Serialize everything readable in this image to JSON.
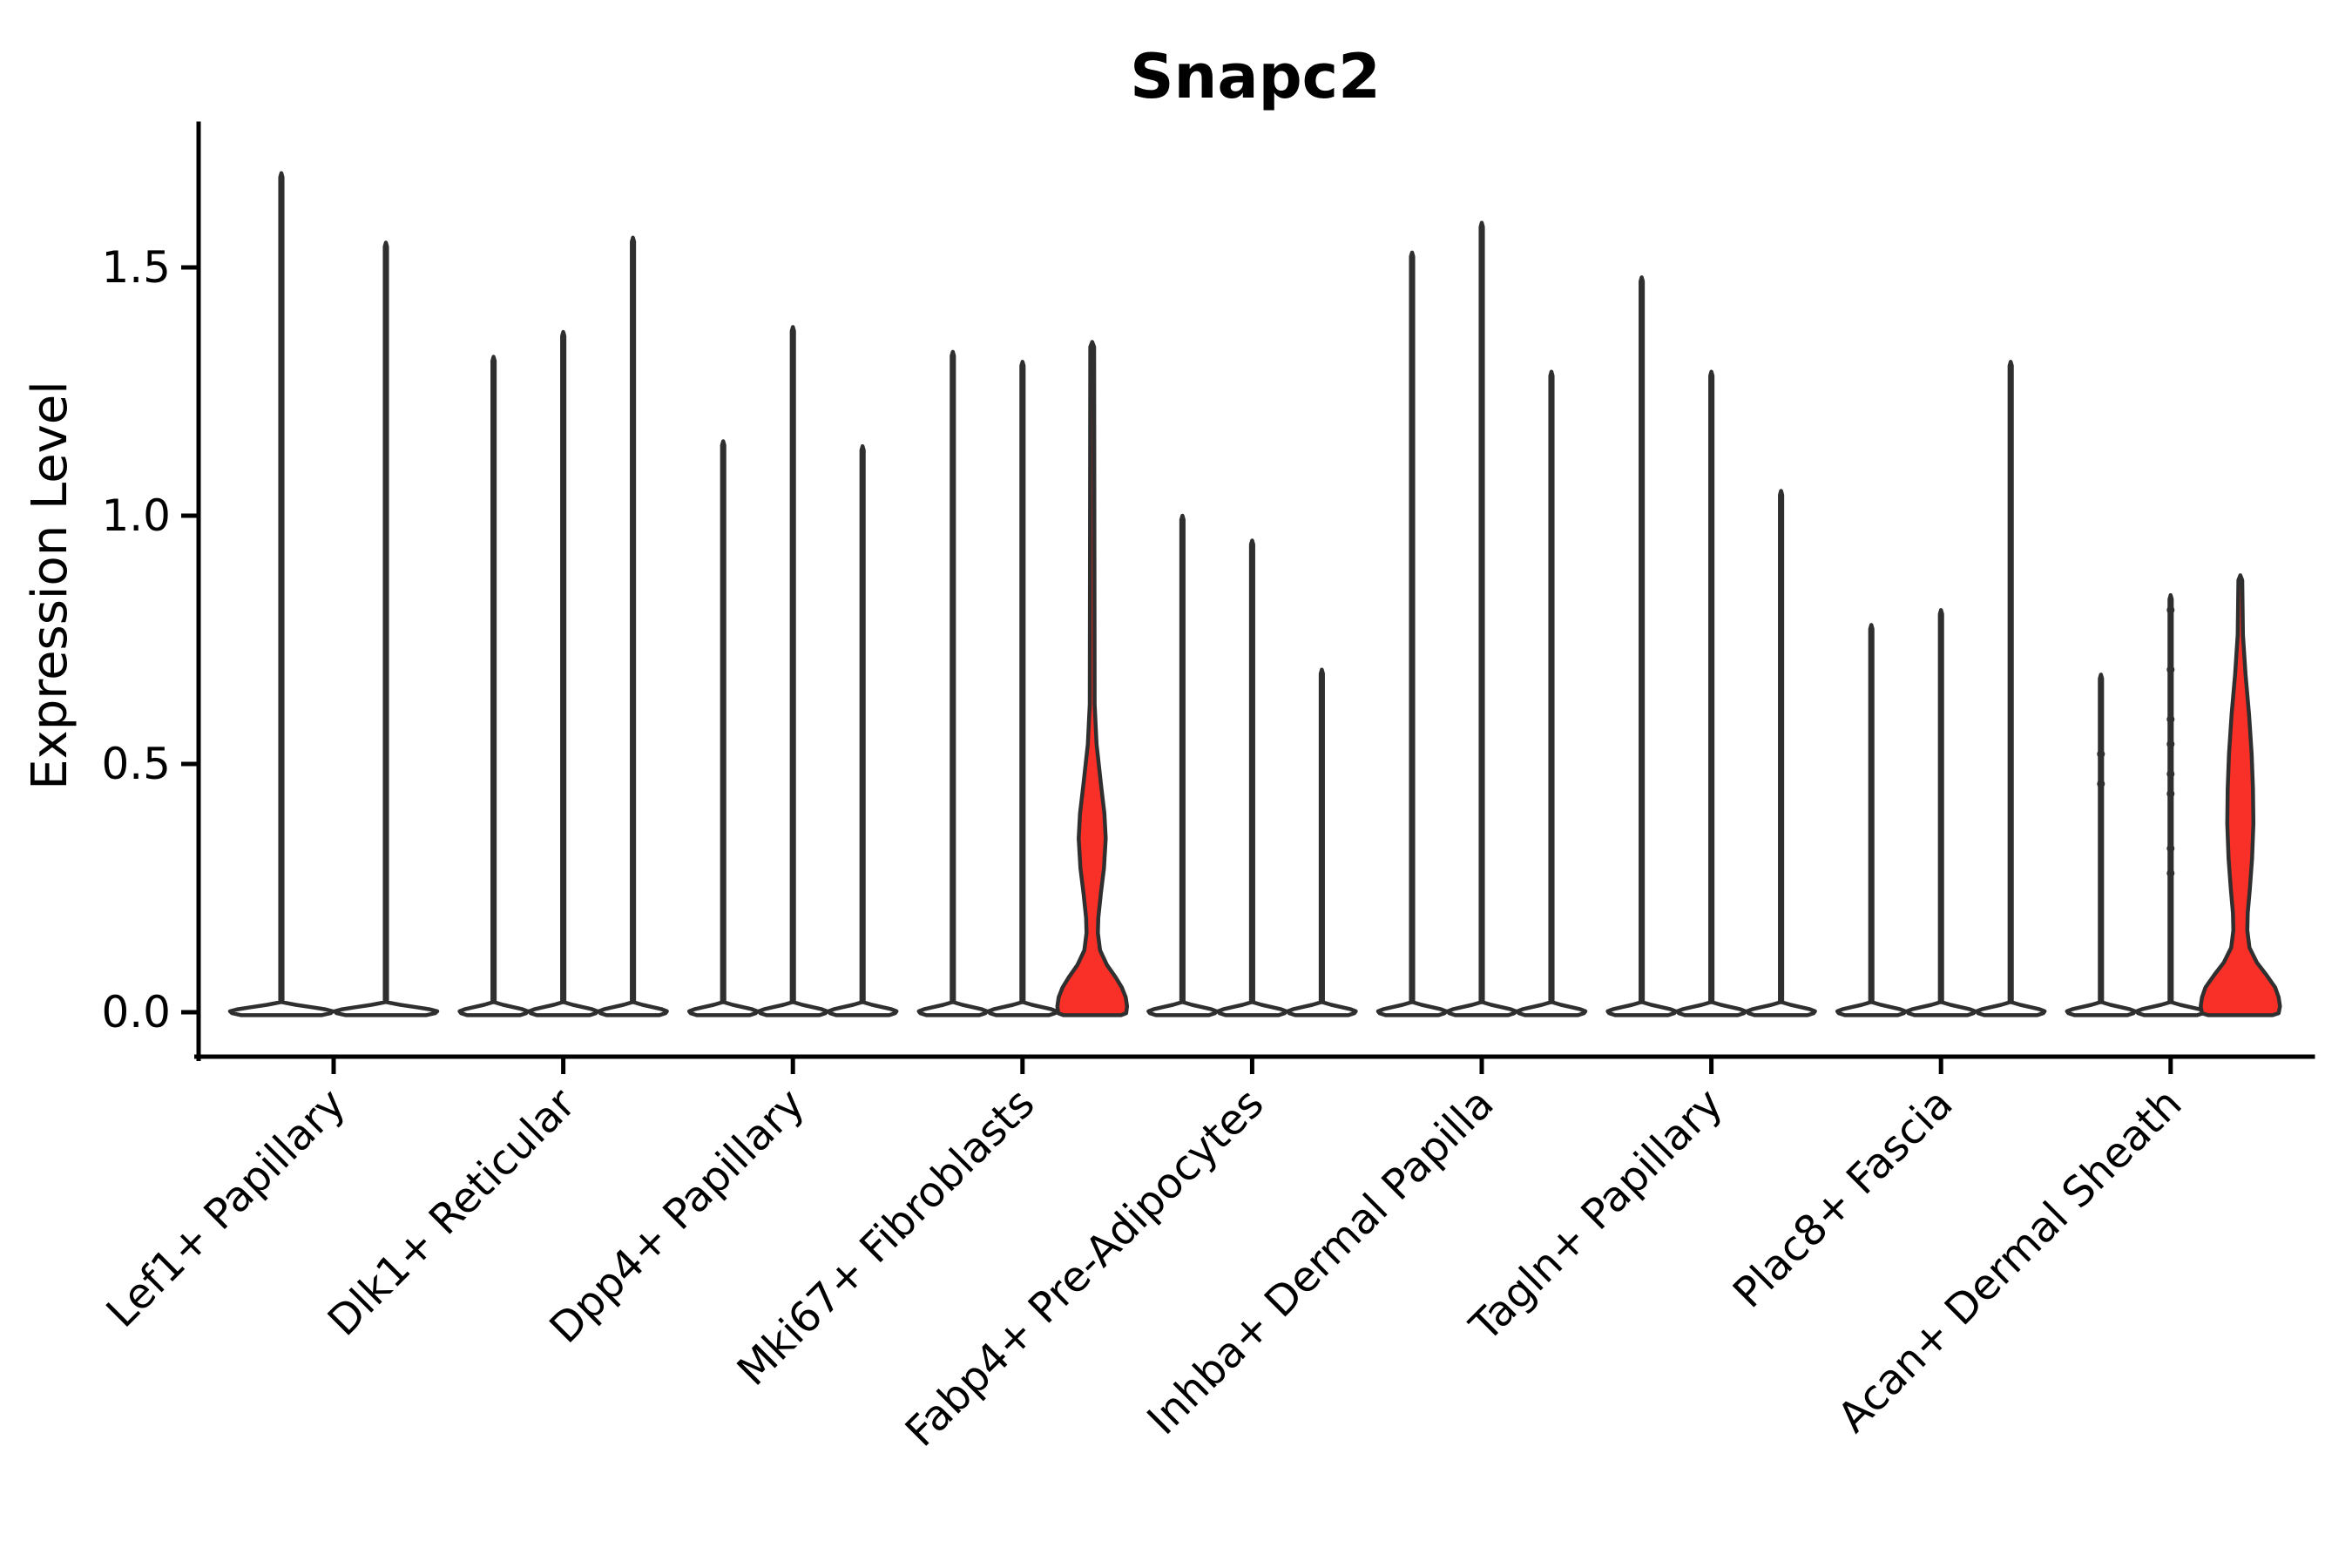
{
  "chart_data": {
    "type": "violin",
    "title": "Snapc2",
    "ylabel": "Expression Level",
    "xlabel": "",
    "grid": false,
    "legend": "none",
    "ylim": [
      -0.07,
      1.87
    ],
    "ytick_labels": [
      "0.0",
      "0.5",
      "1.0",
      "1.5"
    ],
    "ytick_values": [
      0.0,
      0.5,
      1.0,
      1.5
    ],
    "categories": [
      "Lef1+ Papillary",
      "Dlk1+ Reticular",
      "Dpp4+ Papillary",
      "Mki67+ Fibroblasts",
      "Fabp4+ Pre-Adipocytes",
      "Inhba+ Dermal Papilla",
      "Tagln+ Papillary",
      "Plac8+ Fascia",
      "Acan+ Dermal Sheath"
    ],
    "colors": {
      "violin_fill": "#ffffff",
      "highlight_fill": "#f93028",
      "violin_stroke": "#2f2f2f",
      "axis": "#000000"
    },
    "groups": [
      {
        "category": "Lef1+ Papillary",
        "violins": [
          {
            "max": 1.69
          },
          {
            "max": 1.55
          }
        ]
      },
      {
        "category": "Dlk1+ Reticular",
        "violins": [
          {
            "max": 1.32
          },
          {
            "max": 1.37
          },
          {
            "max": 1.56
          }
        ]
      },
      {
        "category": "Dpp4+ Papillary",
        "violins": [
          {
            "max": 1.15
          },
          {
            "max": 1.38
          },
          {
            "max": 1.14
          }
        ]
      },
      {
        "category": "Mki67+ Fibroblasts",
        "violins": [
          {
            "max": 1.33
          },
          {
            "max": 1.31
          },
          {
            "max": 1.35,
            "fill": "highlight",
            "width_profile": [
              [
                1.35,
                0
              ],
              [
                1.34,
                2.2
              ],
              [
                0.62,
                2.8
              ],
              [
                0.54,
                5
              ],
              [
                0.46,
                10
              ],
              [
                0.4,
                14
              ],
              [
                0.35,
                15.5
              ],
              [
                0.29,
                13.5
              ],
              [
                0.24,
                10
              ],
              [
                0.19,
                7
              ],
              [
                0.16,
                6.5
              ],
              [
                0.125,
                9
              ],
              [
                0.095,
                17
              ],
              [
                0.07,
                27
              ],
              [
                0.05,
                34
              ],
              [
                0.03,
                38.5
              ],
              [
                0.012,
                40
              ],
              [
                -0.002,
                39
              ],
              [
                -0.006,
                33
              ]
            ]
          }
        ]
      },
      {
        "category": "Fabp4+ Pre-Adipocytes",
        "violins": [
          {
            "max": 1.0
          },
          {
            "max": 0.95
          },
          {
            "max": 0.69
          }
        ]
      },
      {
        "category": "Inhba+ Dermal Papilla",
        "violins": [
          {
            "max": 1.53
          },
          {
            "max": 1.59
          },
          {
            "max": 1.29
          }
        ]
      },
      {
        "category": "Tagln+ Papillary",
        "violins": [
          {
            "max": 1.48
          },
          {
            "max": 1.29
          },
          {
            "max": 1.05
          }
        ]
      },
      {
        "category": "Plac8+ Fascia",
        "violins": [
          {
            "max": 0.78
          },
          {
            "max": 0.81
          },
          {
            "max": 1.31
          }
        ]
      },
      {
        "category": "Acan+ Dermal Sheath",
        "violins": [
          {
            "max": 0.68,
            "points": [
              0.52,
              0.46
            ]
          },
          {
            "max": 0.84,
            "points": [
              0.81,
              0.69,
              0.59,
              0.54,
              0.48,
              0.44,
              0.33,
              0.28
            ]
          },
          {
            "max": 0.88,
            "fill": "highlight",
            "width_profile": [
              [
                0.88,
                0
              ],
              [
                0.87,
                2.2
              ],
              [
                0.76,
                3
              ],
              [
                0.68,
                6
              ],
              [
                0.6,
                10
              ],
              [
                0.52,
                13
              ],
              [
                0.45,
                14.5
              ],
              [
                0.38,
                15
              ],
              [
                0.31,
                13.5
              ],
              [
                0.25,
                11
              ],
              [
                0.2,
                8.5
              ],
              [
                0.165,
                8
              ],
              [
                0.13,
                10.5
              ],
              [
                0.1,
                19
              ],
              [
                0.075,
                30
              ],
              [
                0.05,
                40
              ],
              [
                0.03,
                44
              ],
              [
                0.012,
                45.5
              ],
              [
                -0.002,
                44
              ],
              [
                -0.006,
                37
              ]
            ]
          }
        ]
      }
    ]
  }
}
